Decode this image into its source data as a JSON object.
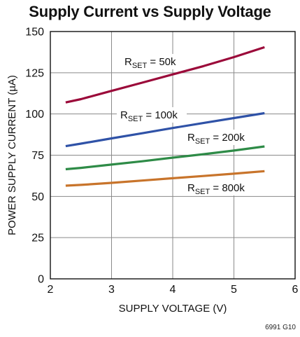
{
  "chart_data": {
    "type": "line",
    "title": "Supply Current vs Supply Voltage",
    "xlabel": "SUPPLY VOLTAGE (V)",
    "ylabel": "POWER SUPPLY CURRENT (µA)",
    "xlim": [
      2,
      6
    ],
    "ylim": [
      0,
      150
    ],
    "xticks": [
      2,
      3,
      4,
      5,
      6
    ],
    "yticks": [
      0,
      25,
      50,
      75,
      100,
      125,
      150
    ],
    "grid": true,
    "series": [
      {
        "label_main": "R",
        "label_sub": "SET",
        "label_rest": " = 50k",
        "color": "#9b0a3a",
        "points": [
          [
            2.25,
            107
          ],
          [
            2.5,
            109
          ],
          [
            3.0,
            114
          ],
          [
            3.5,
            119
          ],
          [
            4.0,
            124
          ],
          [
            4.5,
            129
          ],
          [
            5.0,
            134.5
          ],
          [
            5.5,
            140.5
          ]
        ]
      },
      {
        "label_main": "R",
        "label_sub": "SET",
        "label_rest": " = 100k",
        "color": "#2f52a7",
        "points": [
          [
            2.25,
            80.5
          ],
          [
            2.5,
            82
          ],
          [
            3.0,
            85.2
          ],
          [
            3.5,
            88.3
          ],
          [
            4.0,
            91.5
          ],
          [
            4.5,
            94.5
          ],
          [
            5.0,
            97.5
          ],
          [
            5.5,
            100.5
          ]
        ]
      },
      {
        "label_main": "R",
        "label_sub": "SET",
        "label_rest": " = 200k",
        "color": "#2e8b47",
        "points": [
          [
            2.25,
            66.5
          ],
          [
            2.5,
            67.3
          ],
          [
            3.0,
            69.3
          ],
          [
            3.5,
            71.3
          ],
          [
            4.0,
            73.5
          ],
          [
            4.5,
            75.6
          ],
          [
            5.0,
            77.8
          ],
          [
            5.5,
            80.3
          ]
        ]
      },
      {
        "label_main": "R",
        "label_sub": "SET",
        "label_rest": " = 800k",
        "color": "#c8742b",
        "points": [
          [
            2.25,
            56.5
          ],
          [
            2.5,
            57
          ],
          [
            3.0,
            58.2
          ],
          [
            3.5,
            59.6
          ],
          [
            4.0,
            61
          ],
          [
            4.5,
            62.4
          ],
          [
            5.0,
            63.8
          ],
          [
            5.5,
            65.3
          ]
        ]
      }
    ]
  },
  "figure_id": "6991 G10"
}
